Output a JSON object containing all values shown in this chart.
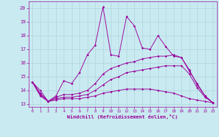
{
  "xlabel": "Windchill (Refroidissement éolien,°C)",
  "background_color": "#c8eaf0",
  "grid_color": "#b0d4de",
  "line_color": "#9b009b",
  "x_ticks": [
    0,
    1,
    2,
    3,
    4,
    5,
    6,
    7,
    8,
    9,
    10,
    11,
    12,
    13,
    14,
    15,
    16,
    17,
    18,
    19,
    20,
    21,
    22,
    23
  ],
  "ylim": [
    12.8,
    20.5
  ],
  "xlim": [
    -0.5,
    23.5
  ],
  "series1_x": [
    0,
    1,
    2,
    3,
    4,
    5,
    6,
    7,
    8,
    9,
    10,
    11,
    12,
    13,
    14,
    15,
    16,
    17,
    18,
    19,
    20,
    21,
    22,
    23
  ],
  "series1_y": [
    14.6,
    14.0,
    13.2,
    13.6,
    14.7,
    14.5,
    15.3,
    16.6,
    17.3,
    20.1,
    16.6,
    16.5,
    19.4,
    18.7,
    17.1,
    17.0,
    18.0,
    17.2,
    16.5,
    16.4,
    15.4,
    14.5,
    13.6,
    13.1
  ],
  "series2_x": [
    0,
    1,
    2,
    3,
    4,
    5,
    6,
    7,
    8,
    9,
    10,
    11,
    12,
    13,
    14,
    15,
    16,
    17,
    18,
    19,
    20,
    21,
    22,
    23
  ],
  "series2_y": [
    14.6,
    13.8,
    13.2,
    13.5,
    13.7,
    13.7,
    13.8,
    14.0,
    14.5,
    15.2,
    15.6,
    15.8,
    16.0,
    16.1,
    16.3,
    16.4,
    16.5,
    16.5,
    16.6,
    16.4,
    15.5,
    14.4,
    13.6,
    13.1
  ],
  "series3_x": [
    0,
    1,
    2,
    3,
    4,
    5,
    6,
    7,
    8,
    9,
    10,
    11,
    12,
    13,
    14,
    15,
    16,
    17,
    18,
    19,
    20,
    21,
    22,
    23
  ],
  "series3_y": [
    14.6,
    13.7,
    13.2,
    13.4,
    13.5,
    13.5,
    13.6,
    13.7,
    14.0,
    14.4,
    14.8,
    15.0,
    15.3,
    15.4,
    15.5,
    15.6,
    15.7,
    15.8,
    15.8,
    15.8,
    15.2,
    14.2,
    13.5,
    13.1
  ],
  "series4_x": [
    0,
    1,
    2,
    3,
    4,
    5,
    6,
    7,
    8,
    9,
    10,
    11,
    12,
    13,
    14,
    15,
    16,
    17,
    18,
    19,
    20,
    21,
    22,
    23
  ],
  "series4_y": [
    14.6,
    13.6,
    13.2,
    13.3,
    13.4,
    13.4,
    13.4,
    13.5,
    13.6,
    13.8,
    13.9,
    14.0,
    14.1,
    14.1,
    14.1,
    14.1,
    14.0,
    13.9,
    13.8,
    13.6,
    13.4,
    13.3,
    13.2,
    13.1
  ],
  "yticks": [
    13,
    14,
    15,
    16,
    17,
    18,
    19,
    20
  ]
}
